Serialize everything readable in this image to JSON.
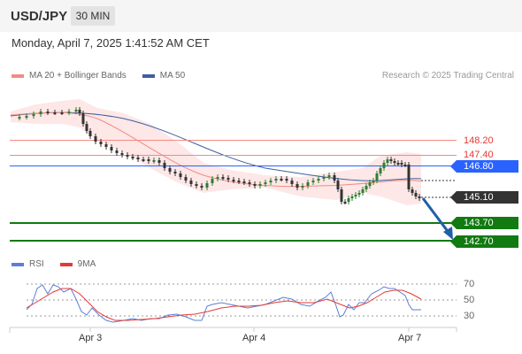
{
  "header": {
    "symbol": "USD/JPY",
    "timeframe": "30 MIN",
    "datetime": "Monday, April 7, 2025 1:41:52 AM CET"
  },
  "legend": {
    "ma20": {
      "label": "MA 20 + Bollinger Bands",
      "color": "#f28b82"
    },
    "ma50": {
      "label": "MA 50",
      "color": "#3f5f9f"
    },
    "credit": "Research © 2025 Trading Central"
  },
  "price_levels": [
    {
      "label": "148.20",
      "value": 148.2,
      "style": "red"
    },
    {
      "label": "147.40",
      "value": 147.4,
      "style": "red"
    },
    {
      "label": "146.80",
      "value": 146.8,
      "style": "blue"
    },
    {
      "label": "145.10",
      "value": 145.1,
      "style": "dark"
    },
    {
      "label": "143.70",
      "value": 143.7,
      "style": "green"
    },
    {
      "label": "142.70",
      "value": 142.7,
      "style": "green"
    }
  ],
  "rsi": {
    "legend_rsi": "RSI",
    "legend_9ma": "9MA",
    "rsi_color": "#5b7fd6",
    "ma_color": "#e53935",
    "levels": [
      "70",
      "50",
      "30"
    ]
  },
  "x_axis": {
    "labels": [
      "Apr 3",
      "Apr 4",
      "Apr 7"
    ]
  },
  "colors": {
    "bull": "#2e7d32",
    "bear": "#333333",
    "band": "#fde3e3",
    "support": "#117a11",
    "arrow": "#1f5fa8"
  }
}
